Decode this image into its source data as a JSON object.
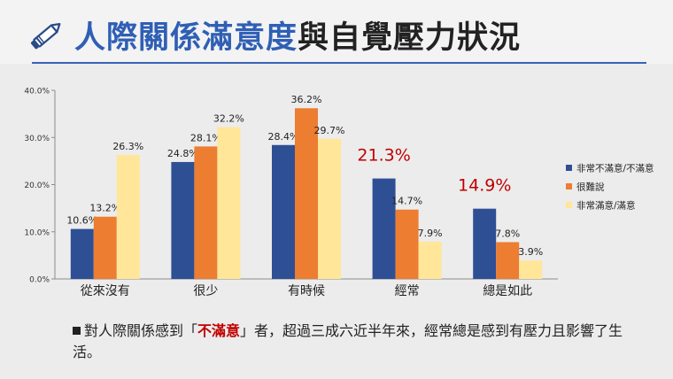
{
  "title": {
    "part_blue": "人際關係滿意度",
    "part_dark": "與自覺壓力狀況"
  },
  "colors": {
    "series1": "#2f4f95",
    "series2": "#ed7d31",
    "series3": "#ffe699",
    "accent": "#c00000",
    "title_blue": "#2f5fb5"
  },
  "icon": "pencil-icon",
  "chart_data": {
    "type": "bar",
    "categories": [
      "從來沒有",
      "很少",
      "有時候",
      "經常",
      "總是如此"
    ],
    "series": [
      {
        "name": "非常不滿意/不滿意",
        "values": [
          10.6,
          24.8,
          28.4,
          21.3,
          14.9
        ]
      },
      {
        "name": "很難說",
        "values": [
          13.2,
          28.1,
          36.2,
          14.7,
          7.8
        ]
      },
      {
        "name": "非常滿意/滿意",
        "values": [
          26.3,
          32.2,
          29.7,
          7.9,
          3.9
        ]
      }
    ],
    "data_labels": [
      [
        "10.6%",
        "13.2%",
        "26.3%"
      ],
      [
        "24.8%",
        "28.1%",
        "32.2%"
      ],
      [
        "28.4%",
        "36.2%",
        "29.7%"
      ],
      [
        "21.3%",
        "14.7%",
        "7.9%"
      ],
      [
        "14.9%",
        "7.8%",
        "3.9%"
      ]
    ],
    "highlight_series": 0,
    "highlight_categories": [
      3,
      4
    ],
    "yticks": [
      "0.0%",
      "10.0%",
      "20.0%",
      "30.0%",
      "40.0%"
    ],
    "ylim": [
      0,
      40
    ],
    "grid": false,
    "legend_position": "right"
  },
  "note": {
    "before": "對人際關係感到「",
    "highlight": "不滿意",
    "after": "」者，超過三成六近半年來，經常總是感到有壓力且影響了生活。"
  }
}
